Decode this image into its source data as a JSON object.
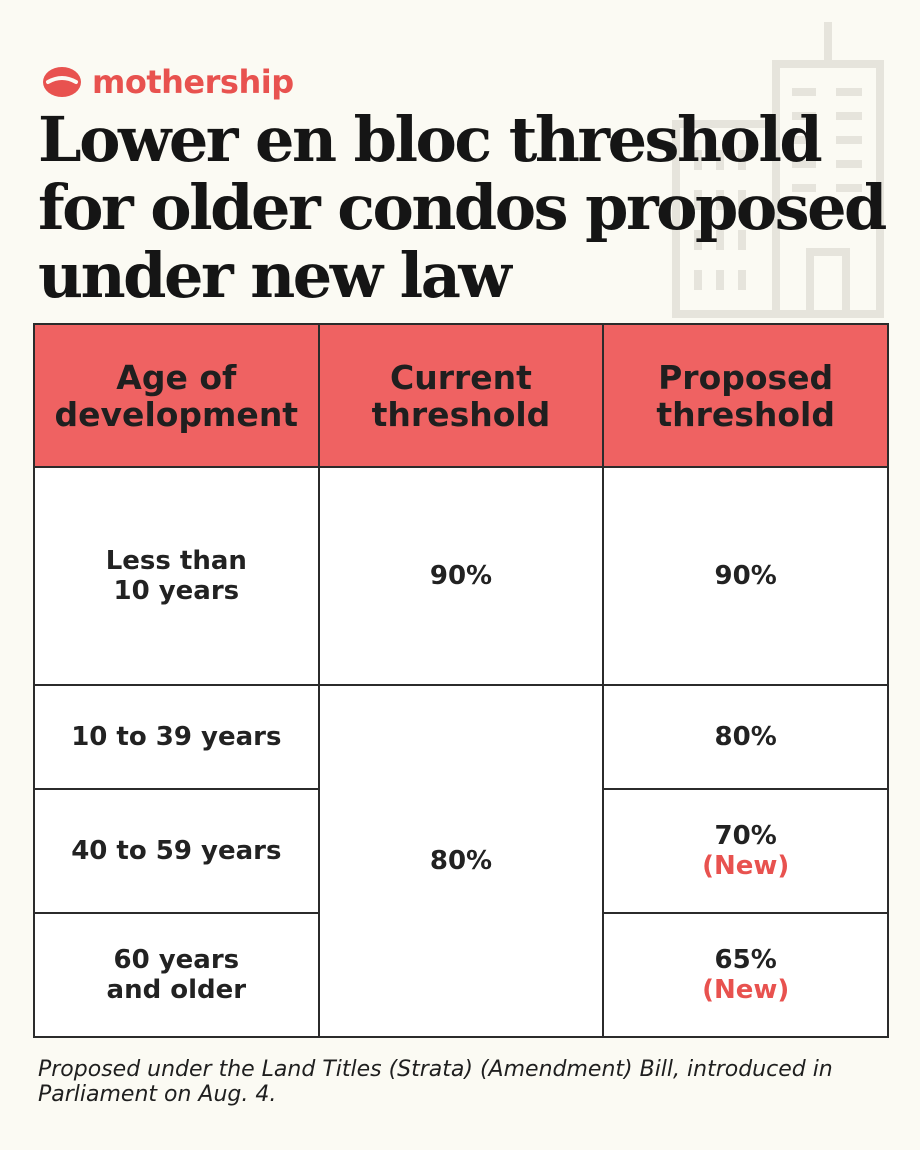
{
  "brand": {
    "name": "mothership",
    "color": "#e8524f"
  },
  "headline": {
    "lines": [
      "Lower en bloc threshold",
      "for older condos proposed",
      "under new law"
    ]
  },
  "colors": {
    "header_fill": "#ef6262",
    "new_label": "#e8524f",
    "background": "#fbfaf3"
  },
  "table": {
    "headers": [
      {
        "lines": [
          "Age of",
          "development"
        ]
      },
      {
        "lines": [
          "Current",
          "threshold"
        ]
      },
      {
        "lines": [
          "Proposed",
          "threshold"
        ]
      }
    ],
    "rows": [
      {
        "age": [
          "Less than",
          "10 years"
        ],
        "current": "90%",
        "proposed": "90%",
        "proposed_note": ""
      },
      {
        "age": [
          "10 to 39 years"
        ],
        "current": "80%",
        "proposed": "80%",
        "proposed_note": ""
      },
      {
        "age": [
          "40 to 59 years"
        ],
        "current": "80%",
        "proposed": "70%",
        "proposed_note": "(New)"
      },
      {
        "age": [
          "60 years",
          "and older"
        ],
        "current": "80%",
        "proposed": "65%",
        "proposed_note": "(New)"
      }
    ]
  },
  "footnote": {
    "line1": "Proposed under the Land Titles (Strata) (Amendment) Bill, introduced in",
    "line2": "Parliament on Aug. 4."
  }
}
